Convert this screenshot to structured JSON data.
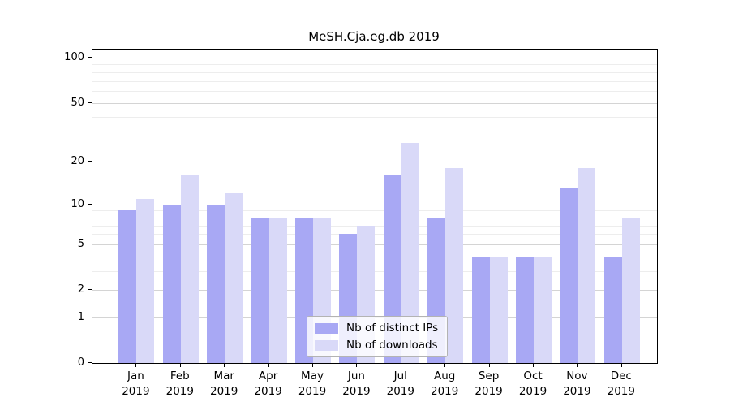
{
  "chart_data": {
    "type": "bar",
    "title": "MeSH.Cja.eg.db 2019",
    "categories": [
      "Jan 2019",
      "Feb 2019",
      "Mar 2019",
      "Apr 2019",
      "May 2019",
      "Jun 2019",
      "Jul 2019",
      "Aug 2019",
      "Sep 2019",
      "Oct 2019",
      "Nov 2019",
      "Dec 2019"
    ],
    "month_labels": [
      "Jan",
      "Feb",
      "Mar",
      "Apr",
      "May",
      "Jun",
      "Jul",
      "Aug",
      "Sep",
      "Oct",
      "Nov",
      "Dec"
    ],
    "year_label": "2019",
    "series": [
      {
        "name": "Nb of distinct IPs",
        "color": "#a8a8f4",
        "values": [
          9,
          10,
          10,
          8,
          8,
          6,
          16,
          8,
          4,
          4,
          13,
          4
        ]
      },
      {
        "name": "Nb of downloads",
        "color": "#d9d9f8",
        "values": [
          11,
          16,
          12,
          8,
          8,
          7,
          27,
          18,
          4,
          4,
          18,
          8
        ]
      }
    ],
    "yscale": "log10(1+v)",
    "ylim": [
      0,
      100
    ],
    "y_major_ticks": [
      0,
      1,
      2,
      5,
      10,
      20,
      50,
      100
    ],
    "y_minor_gridlines": [
      3,
      4,
      6,
      7,
      8,
      9,
      30,
      40,
      60,
      70,
      80,
      90
    ],
    "grid": "horizontal, major and minor, on",
    "legend_position": "lower center inside plot",
    "colors": {
      "major_grid": "#d4d4d4",
      "minor_grid": "#ededed",
      "axis": "#000000",
      "background": "#ffffff"
    }
  }
}
